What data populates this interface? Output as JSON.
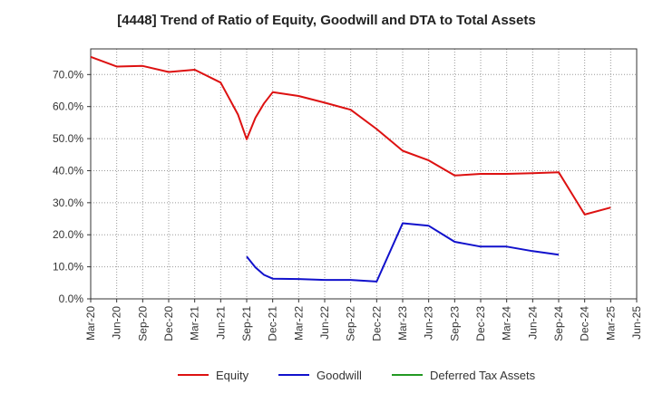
{
  "chart_data": {
    "type": "line",
    "title": "[4448]  Trend of Ratio of Equity, Goodwill and DTA to Total Assets",
    "xlabel": "",
    "ylabel": "",
    "x_ticks": [
      "Mar-20",
      "Jun-20",
      "Sep-20",
      "Dec-20",
      "Mar-21",
      "Jun-21",
      "Sep-21",
      "Dec-21",
      "Mar-22",
      "Jun-22",
      "Sep-22",
      "Dec-22",
      "Mar-23",
      "Jun-23",
      "Sep-23",
      "Dec-23",
      "Mar-24",
      "Jun-24",
      "Sep-24",
      "Dec-24",
      "Mar-25",
      "Jun-25"
    ],
    "ylim": [
      0,
      78
    ],
    "y_ticks": [
      0,
      10,
      20,
      30,
      40,
      50,
      60,
      70
    ],
    "y_tick_labels": [
      "0.0%",
      "10.0%",
      "20.0%",
      "30.0%",
      "40.0%",
      "50.0%",
      "60.0%",
      "70.0%"
    ],
    "grid": true,
    "legend_position": "bottom",
    "series": [
      {
        "name": "Equity",
        "color": "#dd1111",
        "points": [
          [
            "Mar-20",
            75.5
          ],
          [
            "Jun-20",
            72.5
          ],
          [
            "Sep-20",
            72.7
          ],
          [
            "Dec-20",
            70.8
          ],
          [
            "Mar-21",
            71.5
          ],
          [
            "Jun-21",
            67.5
          ],
          [
            "Aug-21",
            57.5
          ],
          [
            "Sep-21",
            49.8
          ],
          [
            "Oct-21",
            56.5
          ],
          [
            "Nov-21",
            61.0
          ],
          [
            "Dec-21",
            64.5
          ],
          [
            "Mar-22",
            63.3
          ],
          [
            "Jun-22",
            61.2
          ],
          [
            "Sep-22",
            59.0
          ],
          [
            "Dec-22",
            53.0
          ],
          [
            "Mar-23",
            46.2
          ],
          [
            "Jun-23",
            43.2
          ],
          [
            "Sep-23",
            38.5
          ],
          [
            "Dec-23",
            39.0
          ],
          [
            "Mar-24",
            39.0
          ],
          [
            "Jun-24",
            39.2
          ],
          [
            "Sep-24",
            39.5
          ],
          [
            "Dec-24",
            26.3
          ],
          [
            "Mar-25",
            28.5
          ]
        ]
      },
      {
        "name": "Goodwill",
        "color": "#1111cc",
        "points": [
          [
            "Sep-21",
            13.2
          ],
          [
            "Oct-21",
            9.8
          ],
          [
            "Nov-21",
            7.5
          ],
          [
            "Dec-21",
            6.3
          ],
          [
            "Mar-22",
            6.2
          ],
          [
            "Jun-22",
            5.9
          ],
          [
            "Sep-22",
            5.9
          ],
          [
            "Dec-22",
            5.4
          ],
          [
            "Mar-23",
            23.6
          ],
          [
            "Jun-23",
            22.8
          ],
          [
            "Sep-23",
            17.8
          ],
          [
            "Dec-23",
            16.3
          ],
          [
            "Mar-24",
            16.3
          ],
          [
            "Jun-24",
            14.9
          ],
          [
            "Sep-24",
            13.8
          ]
        ]
      },
      {
        "name": "Deferred Tax Assets",
        "color": "#229922",
        "points": []
      }
    ]
  }
}
